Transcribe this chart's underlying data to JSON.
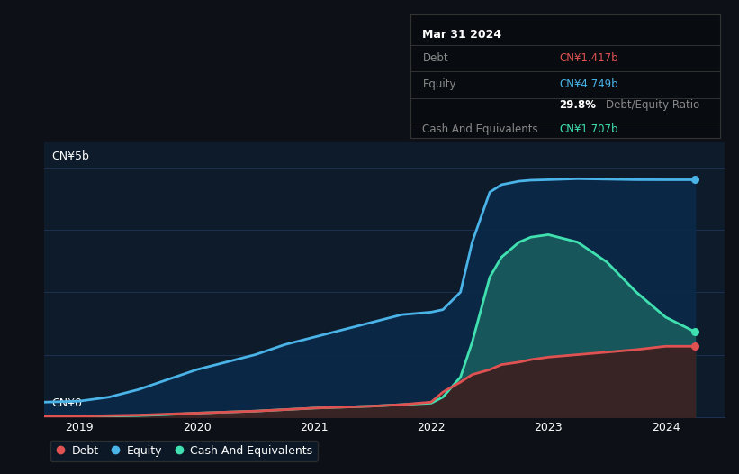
{
  "bg_color": "#0d1117",
  "plot_bg_color": "#0d1b2a",
  "grid_color": "#1e3050",
  "title_box": {
    "date": "Mar 31 2024",
    "debt_label": "Debt",
    "debt_value": "CN¥1.417b",
    "equity_label": "Equity",
    "equity_value": "CN¥4.749b",
    "ratio": "29.8%",
    "ratio_label": "Debt/Equity Ratio",
    "cash_label": "Cash And Equivalents",
    "cash_value": "CN¥1.707b"
  },
  "debt_color": "#e05252",
  "equity_color": "#4ab3e8",
  "cash_color": "#40e0b0",
  "cash_fill_color": "#1a6060",
  "debt_fill_color": "#3a2222",
  "equity_fill_color": "#0a2a4a",
  "ylabel_cn5": "CN¥5b",
  "ylabel_cn0": "CN¥0",
  "x_ticks": [
    2019,
    2020,
    2021,
    2022,
    2023,
    2024
  ],
  "ylim": [
    0,
    5.5
  ],
  "xlim": [
    2018.7,
    2024.5
  ],
  "years": [
    2018.7,
    2019.0,
    2019.25,
    2019.5,
    2019.75,
    2020.0,
    2020.25,
    2020.5,
    2020.75,
    2021.0,
    2021.25,
    2021.5,
    2021.75,
    2022.0,
    2022.1,
    2022.25,
    2022.35,
    2022.5,
    2022.6,
    2022.75,
    2022.85,
    2023.0,
    2023.25,
    2023.5,
    2023.75,
    2024.0,
    2024.25
  ],
  "equity": [
    0.3,
    0.32,
    0.4,
    0.55,
    0.75,
    0.95,
    1.1,
    1.25,
    1.45,
    1.6,
    1.75,
    1.9,
    2.05,
    2.1,
    2.15,
    2.5,
    3.5,
    4.5,
    4.65,
    4.72,
    4.74,
    4.75,
    4.77,
    4.76,
    4.75,
    4.749,
    4.749
  ],
  "debt": [
    0.02,
    0.02,
    0.03,
    0.04,
    0.06,
    0.08,
    0.1,
    0.12,
    0.15,
    0.18,
    0.2,
    0.22,
    0.25,
    0.3,
    0.5,
    0.7,
    0.85,
    0.95,
    1.05,
    1.1,
    1.15,
    1.2,
    1.25,
    1.3,
    1.35,
    1.417,
    1.417
  ],
  "cash": [
    0.01,
    0.01,
    0.02,
    0.03,
    0.05,
    0.08,
    0.1,
    0.12,
    0.15,
    0.18,
    0.2,
    0.22,
    0.25,
    0.28,
    0.4,
    0.8,
    1.5,
    2.8,
    3.2,
    3.5,
    3.6,
    3.65,
    3.5,
    3.1,
    2.5,
    2.0,
    1.707
  ],
  "legend_items": [
    {
      "label": "Debt",
      "color": "#e05252"
    },
    {
      "label": "Equity",
      "color": "#4ab3e8"
    },
    {
      "label": "Cash And Equivalents",
      "color": "#40e0b0"
    }
  ]
}
